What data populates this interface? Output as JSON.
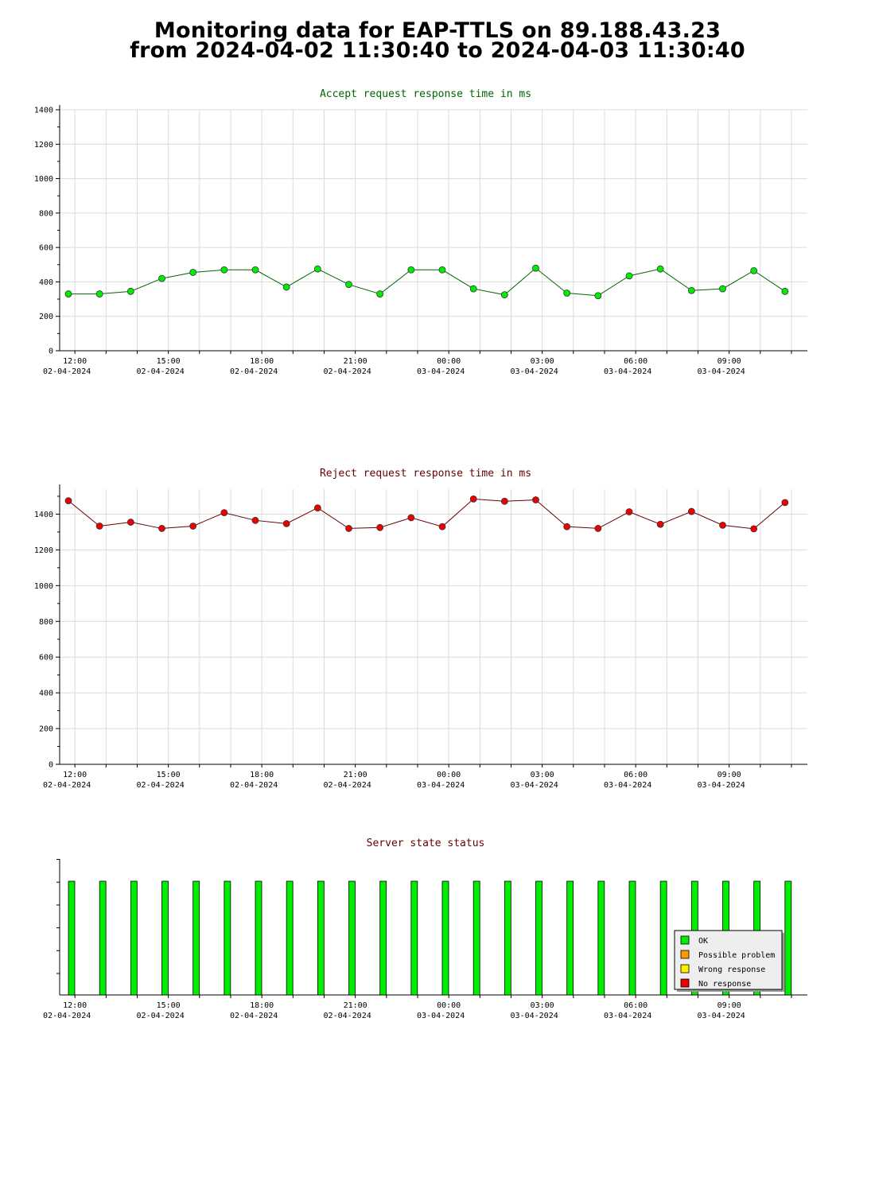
{
  "header": {
    "line1": "Monitoring data for EAP-TTLS on 89.188.43.23",
    "line2": "from 2024-04-02 11:30:40 to 2024-04-03 11:30:40"
  },
  "x_axis": {
    "ticks": [
      {
        "time": "12:00",
        "date": "02-04-2024"
      },
      {
        "time": "15:00",
        "date": "02-04-2024"
      },
      {
        "time": "18:00",
        "date": "02-04-2024"
      },
      {
        "time": "21:00",
        "date": "02-04-2024"
      },
      {
        "time": "00:00",
        "date": "03-04-2024"
      },
      {
        "time": "03:00",
        "date": "03-04-2024"
      },
      {
        "time": "06:00",
        "date": "03-04-2024"
      },
      {
        "time": "09:00",
        "date": "03-04-2024"
      }
    ]
  },
  "legend": {
    "items": [
      {
        "label": "OK",
        "color": "#00ee00"
      },
      {
        "label": "Possible problem",
        "color": "#ff9900"
      },
      {
        "label": "Wrong response",
        "color": "#ffee00"
      },
      {
        "label": "No response",
        "color": "#ee0000"
      }
    ]
  },
  "chart_data": [
    {
      "type": "line",
      "title": "Accept request response time in ms",
      "title_color": "#006600",
      "marker_color": "#00ee00",
      "line_color": "#006600",
      "ylim": [
        0,
        1400
      ],
      "yticks": [
        0,
        200,
        400,
        600,
        800,
        1000,
        1200,
        1400
      ],
      "grid": true,
      "x": [
        "2024-04-02 11:30:40",
        "2024-04-02 12:30:40",
        "2024-04-02 13:30:40",
        "2024-04-02 14:30:40",
        "2024-04-02 15:30:40",
        "2024-04-02 16:30:40",
        "2024-04-02 17:30:40",
        "2024-04-02 18:30:40",
        "2024-04-02 19:30:40",
        "2024-04-02 20:30:40",
        "2024-04-02 21:30:40",
        "2024-04-02 22:30:40",
        "2024-04-02 23:30:40",
        "2024-04-03 00:30:40",
        "2024-04-03 01:30:40",
        "2024-04-03 02:30:40",
        "2024-04-03 03:30:40",
        "2024-04-03 04:30:40",
        "2024-04-03 05:30:40",
        "2024-04-03 06:30:40",
        "2024-04-03 07:30:40",
        "2024-04-03 08:30:40",
        "2024-04-03 09:30:40",
        "2024-04-03 10:30:40"
      ],
      "values": [
        330,
        330,
        345,
        420,
        455,
        470,
        470,
        370,
        475,
        385,
        330,
        470,
        470,
        360,
        325,
        480,
        335,
        320,
        435,
        475,
        350,
        360,
        465,
        345
      ]
    },
    {
      "type": "line",
      "title": "Reject request response time in ms",
      "title_color": "#660000",
      "marker_color": "#ee0000",
      "line_color": "#660000",
      "ylim": [
        0,
        1540
      ],
      "yticks": [
        0,
        200,
        400,
        600,
        800,
        1000,
        1200,
        1400
      ],
      "grid": true,
      "x": [
        "2024-04-02 11:30:40",
        "2024-04-02 12:30:40",
        "2024-04-02 13:30:40",
        "2024-04-02 14:30:40",
        "2024-04-02 15:30:40",
        "2024-04-02 16:30:40",
        "2024-04-02 17:30:40",
        "2024-04-02 18:30:40",
        "2024-04-02 19:30:40",
        "2024-04-02 20:30:40",
        "2024-04-02 21:30:40",
        "2024-04-02 22:30:40",
        "2024-04-02 23:30:40",
        "2024-04-03 00:30:40",
        "2024-04-03 01:30:40",
        "2024-04-03 02:30:40",
        "2024-04-03 03:30:40",
        "2024-04-03 04:30:40",
        "2024-04-03 05:30:40",
        "2024-04-03 06:30:40",
        "2024-04-03 07:30:40",
        "2024-04-03 08:30:40",
        "2024-04-03 09:30:40",
        "2024-04-03 10:30:40"
      ],
      "values": [
        1475,
        1333,
        1355,
        1320,
        1333,
        1408,
        1365,
        1347,
        1435,
        1320,
        1325,
        1380,
        1330,
        1485,
        1472,
        1480,
        1330,
        1320,
        1413,
        1343,
        1415,
        1338,
        1318,
        1465
      ]
    },
    {
      "type": "bar",
      "title": "Server state status",
      "title_color": "#660000",
      "legend": "bottom-right",
      "x": [
        "2024-04-02 11:30:40",
        "2024-04-02 12:30:40",
        "2024-04-02 13:30:40",
        "2024-04-02 14:30:40",
        "2024-04-02 15:30:40",
        "2024-04-02 16:30:40",
        "2024-04-02 17:30:40",
        "2024-04-02 18:30:40",
        "2024-04-02 19:30:40",
        "2024-04-02 20:30:40",
        "2024-04-02 21:30:40",
        "2024-04-02 22:30:40",
        "2024-04-02 23:30:40",
        "2024-04-03 00:30:40",
        "2024-04-03 01:30:40",
        "2024-04-03 02:30:40",
        "2024-04-03 03:30:40",
        "2024-04-03 04:30:40",
        "2024-04-03 05:30:40",
        "2024-04-03 06:30:40",
        "2024-04-03 07:30:40",
        "2024-04-03 08:30:40",
        "2024-04-03 09:30:40",
        "2024-04-03 10:30:40"
      ],
      "status": [
        "OK",
        "OK",
        "OK",
        "OK",
        "OK",
        "OK",
        "OK",
        "OK",
        "OK",
        "OK",
        "OK",
        "OK",
        "OK",
        "OK",
        "OK",
        "OK",
        "OK",
        "OK",
        "OK",
        "OK",
        "OK",
        "OK",
        "OK",
        "OK"
      ]
    }
  ]
}
